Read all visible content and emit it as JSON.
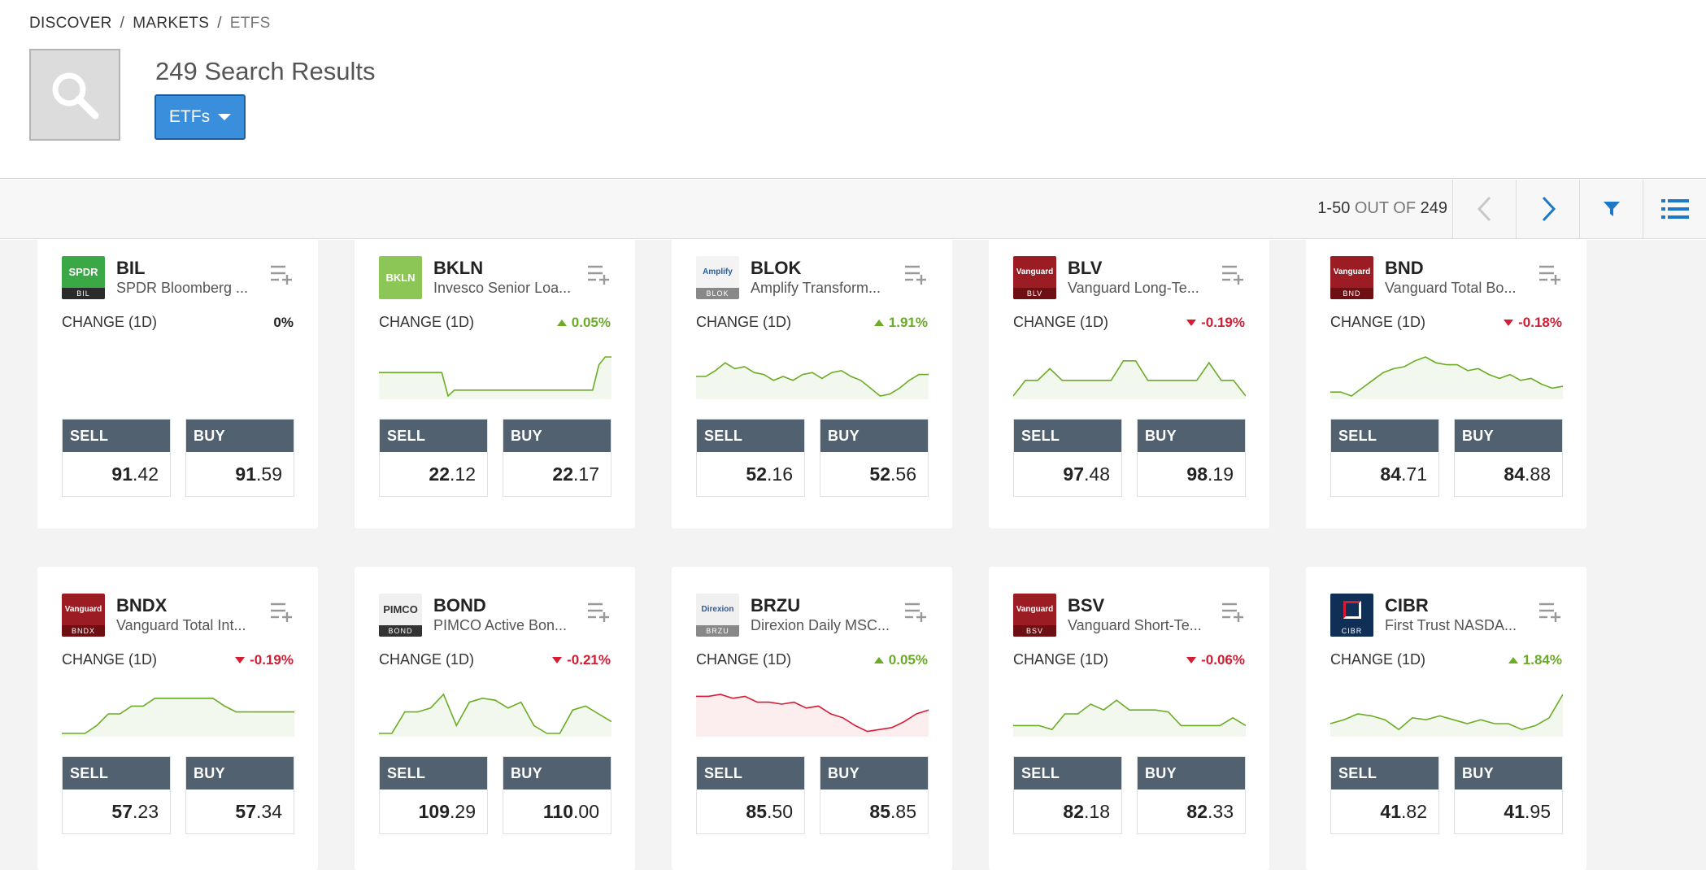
{
  "breadcrumb": [
    "DISCOVER",
    "MARKETS",
    "ETFS"
  ],
  "header": {
    "results_count": "249 Search Results",
    "filter_label": "ETFs"
  },
  "pager": {
    "range": "1-50",
    "out_of": "OUT OF",
    "total": "249"
  },
  "change_label": "CHANGE (1D)",
  "sell_label": "SELL",
  "buy_label": "BUY",
  "colors": {
    "up": "#6aac25",
    "down": "#d61b32",
    "accent": "#3a8fdd",
    "trade_header": "#526170"
  },
  "cards": [
    {
      "symbol": "BIL",
      "name": "SPDR Bloomberg ...",
      "logo": {
        "top": "SPDR",
        "bottom": "BIL",
        "bg": "#3aa845",
        "fg": "#ffffff",
        "bottom_bg": "#2b2b2b"
      },
      "change": "0%",
      "direction": "flat",
      "sell": "91.42",
      "buy": "91.59",
      "spark_color": "#6aac25",
      "spark": []
    },
    {
      "symbol": "BKLN",
      "name": "Invesco Senior Loa...",
      "logo": {
        "top": "BKLN",
        "bottom": "",
        "bg": "#8cc657",
        "fg": "#ffffff",
        "bottom_bg": "#8cc657"
      },
      "change": "0.05%",
      "direction": "up",
      "sell": "22.12",
      "buy": "22.17",
      "spark_color": "#6aac25",
      "spark": [
        0.4,
        0.4,
        0.4,
        0.4,
        0.4,
        0.4,
        0.4,
        0.4,
        0.4,
        0.4,
        0.4,
        1.0,
        0.85,
        0.85,
        0.85,
        0.85,
        0.85,
        0.85,
        0.85,
        0.85,
        0.85,
        0.85,
        0.85,
        0.85,
        0.85,
        0.85,
        0.85,
        0.85,
        0.85,
        0.85,
        0.85,
        0.85,
        0.85,
        0.85,
        0.85,
        0.2,
        0.0,
        0.0
      ]
    },
    {
      "symbol": "BLOK",
      "name": "Amplify Transform...",
      "logo": {
        "top": "Amplify",
        "bottom": "BLOK",
        "bg": "#f3f3f3",
        "fg": "#2a5c9a",
        "bottom_bg": "#888888"
      },
      "change": "1.91%",
      "direction": "up",
      "sell": "52.16",
      "buy": "52.56",
      "spark_color": "#6aac25",
      "spark": [
        0.5,
        0.5,
        0.35,
        0.15,
        0.3,
        0.25,
        0.4,
        0.45,
        0.6,
        0.5,
        0.6,
        0.45,
        0.4,
        0.55,
        0.4,
        0.35,
        0.5,
        0.6,
        0.8,
        1.0,
        0.95,
        0.8,
        0.6,
        0.45,
        0.45
      ]
    },
    {
      "symbol": "BLV",
      "name": "Vanguard Long-Te...",
      "logo": {
        "top": "Vanguard",
        "bottom": "BLV",
        "bg": "#9b1d23",
        "fg": "#ffffff",
        "bottom_bg": "#6e0f13"
      },
      "change": "-0.19%",
      "direction": "down",
      "sell": "97.48",
      "buy": "98.19",
      "spark_color": "#6aac25",
      "spark": [
        1.0,
        0.6,
        0.6,
        0.3,
        0.6,
        0.6,
        0.6,
        0.6,
        0.6,
        0.1,
        0.1,
        0.6,
        0.6,
        0.6,
        0.6,
        0.6,
        0.15,
        0.6,
        0.6,
        1.0
      ]
    },
    {
      "symbol": "BND",
      "name": "Vanguard Total Bo...",
      "logo": {
        "top": "Vanguard",
        "bottom": "BND",
        "bg": "#9b1d23",
        "fg": "#ffffff",
        "bottom_bg": "#6e0f13"
      },
      "change": "-0.18%",
      "direction": "down",
      "sell": "84.71",
      "buy": "84.88",
      "spark_color": "#6aac25",
      "spark": [
        0.9,
        0.9,
        1.0,
        0.8,
        0.6,
        0.4,
        0.3,
        0.25,
        0.1,
        0.0,
        0.15,
        0.2,
        0.2,
        0.35,
        0.3,
        0.45,
        0.55,
        0.45,
        0.6,
        0.55,
        0.7,
        0.8,
        0.75
      ]
    },
    {
      "symbol": "BNDX",
      "name": "Vanguard Total Int...",
      "logo": {
        "top": "Vanguard",
        "bottom": "BNDX",
        "bg": "#9b1d23",
        "fg": "#ffffff",
        "bottom_bg": "#6e0f13"
      },
      "change": "-0.19%",
      "direction": "down",
      "sell": "57.23",
      "buy": "57.34",
      "spark_color": "#6aac25",
      "spark": [
        1.0,
        1.0,
        1.0,
        0.8,
        0.5,
        0.5,
        0.3,
        0.3,
        0.1,
        0.1,
        0.1,
        0.1,
        0.1,
        0.1,
        0.3,
        0.45,
        0.45,
        0.45,
        0.45,
        0.45,
        0.45
      ]
    },
    {
      "symbol": "BOND",
      "name": "PIMCO Active Bon...",
      "logo": {
        "top": "PIMCO",
        "bottom": "BOND",
        "bg": "#f0f0f0",
        "fg": "#333333",
        "bottom_bg": "#333333"
      },
      "change": "-0.21%",
      "direction": "down",
      "sell": "109.29",
      "buy": "110.00",
      "spark_color": "#6aac25",
      "spark": [
        1.0,
        1.0,
        0.45,
        0.45,
        0.35,
        0.0,
        0.8,
        0.2,
        0.1,
        0.15,
        0.35,
        0.2,
        0.8,
        1.0,
        1.0,
        0.4,
        0.3,
        0.5,
        0.7
      ]
    },
    {
      "symbol": "BRZU",
      "name": "Direxion Daily MSC...",
      "logo": {
        "top": "Direxion",
        "bottom": "BRZU",
        "bg": "#f0f0f0",
        "fg": "#2a5c9a",
        "bottom_bg": "#888888"
      },
      "change": "0.05%",
      "direction": "up",
      "sell": "85.50",
      "buy": "85.85",
      "spark_color": "#d61b32",
      "spark": [
        0.05,
        0.05,
        0.0,
        0.1,
        0.05,
        0.2,
        0.2,
        0.25,
        0.2,
        0.35,
        0.3,
        0.5,
        0.6,
        0.8,
        0.95,
        0.9,
        0.85,
        0.7,
        0.5,
        0.4
      ]
    },
    {
      "symbol": "BSV",
      "name": "Vanguard Short-Te...",
      "logo": {
        "top": "Vanguard",
        "bottom": "BSV",
        "bg": "#9b1d23",
        "fg": "#ffffff",
        "bottom_bg": "#6e0f13"
      },
      "change": "-0.06%",
      "direction": "down",
      "sell": "82.18",
      "buy": "82.33",
      "spark_color": "#6aac25",
      "spark": [
        0.8,
        0.8,
        0.8,
        0.9,
        0.5,
        0.5,
        0.25,
        0.4,
        0.15,
        0.4,
        0.4,
        0.4,
        0.45,
        0.8,
        0.8,
        0.8,
        0.8,
        0.6,
        0.8
      ]
    },
    {
      "symbol": "CIBR",
      "name": "First Trust NASDA...",
      "logo": {
        "top": "",
        "bottom": "CIBR",
        "bg": "#0f2f57",
        "fg": "#ffffff",
        "bottom_bg": "#0f2f57"
      },
      "change": "1.84%",
      "direction": "up",
      "sell": "41.82",
      "buy": "41.95",
      "spark_color": "#6aac25",
      "spark": [
        0.75,
        0.65,
        0.5,
        0.55,
        0.65,
        0.9,
        0.6,
        0.65,
        0.55,
        0.65,
        0.75,
        0.65,
        0.75,
        0.75,
        0.9,
        0.8,
        0.6,
        0.0
      ]
    }
  ]
}
